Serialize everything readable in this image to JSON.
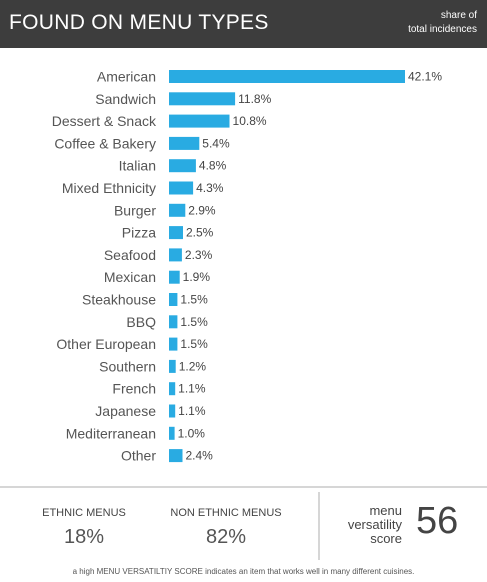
{
  "header": {
    "title": "FOUND ON MENU TYPES",
    "note_line1": "share of",
    "note_line2": "total incidences"
  },
  "colors": {
    "bar": "#29abe2",
    "header_bg": "#3d3d3d"
  },
  "chart_data": {
    "type": "bar",
    "orientation": "horizontal",
    "categories": [
      "American",
      "Sandwich",
      "Dessert & Snack",
      "Coffee & Bakery",
      "Italian",
      "Mixed Ethnicity",
      "Burger",
      "Pizza",
      "Seafood",
      "Mexican",
      "Steakhouse",
      "BBQ",
      "Other European",
      "Southern",
      "French",
      "Japanese",
      "Mediterranean",
      "Other"
    ],
    "values": [
      42.1,
      11.8,
      10.8,
      5.4,
      4.8,
      4.3,
      2.9,
      2.5,
      2.3,
      1.9,
      1.5,
      1.5,
      1.5,
      1.2,
      1.1,
      1.1,
      1.0,
      2.4
    ],
    "value_labels": [
      "42.1%",
      "11.8%",
      "10.8%",
      "5.4%",
      "4.8%",
      "4.3%",
      "2.9%",
      "2.5%",
      "2.3%",
      "1.9%",
      "1.5%",
      "1.5%",
      "1.5%",
      "1.2%",
      "1.1%",
      "1.1%",
      "1.0%",
      "2.4%"
    ],
    "title": "FOUND ON MENU TYPES",
    "xlim": [
      0,
      42.1
    ],
    "grid": false,
    "legend": "none"
  },
  "stats": {
    "ethnic": {
      "label": "ETHNIC MENUS",
      "value": "18%"
    },
    "non_ethnic": {
      "label": "NON ETHNIC MENUS",
      "value": "82%"
    }
  },
  "score": {
    "label_line1": "menu",
    "label_line2": "versatility",
    "label_line3": "score",
    "value": "56"
  },
  "footnote": "a high MENU VERSATILTIY SCORE indicates an item that works well in many different cuisines."
}
